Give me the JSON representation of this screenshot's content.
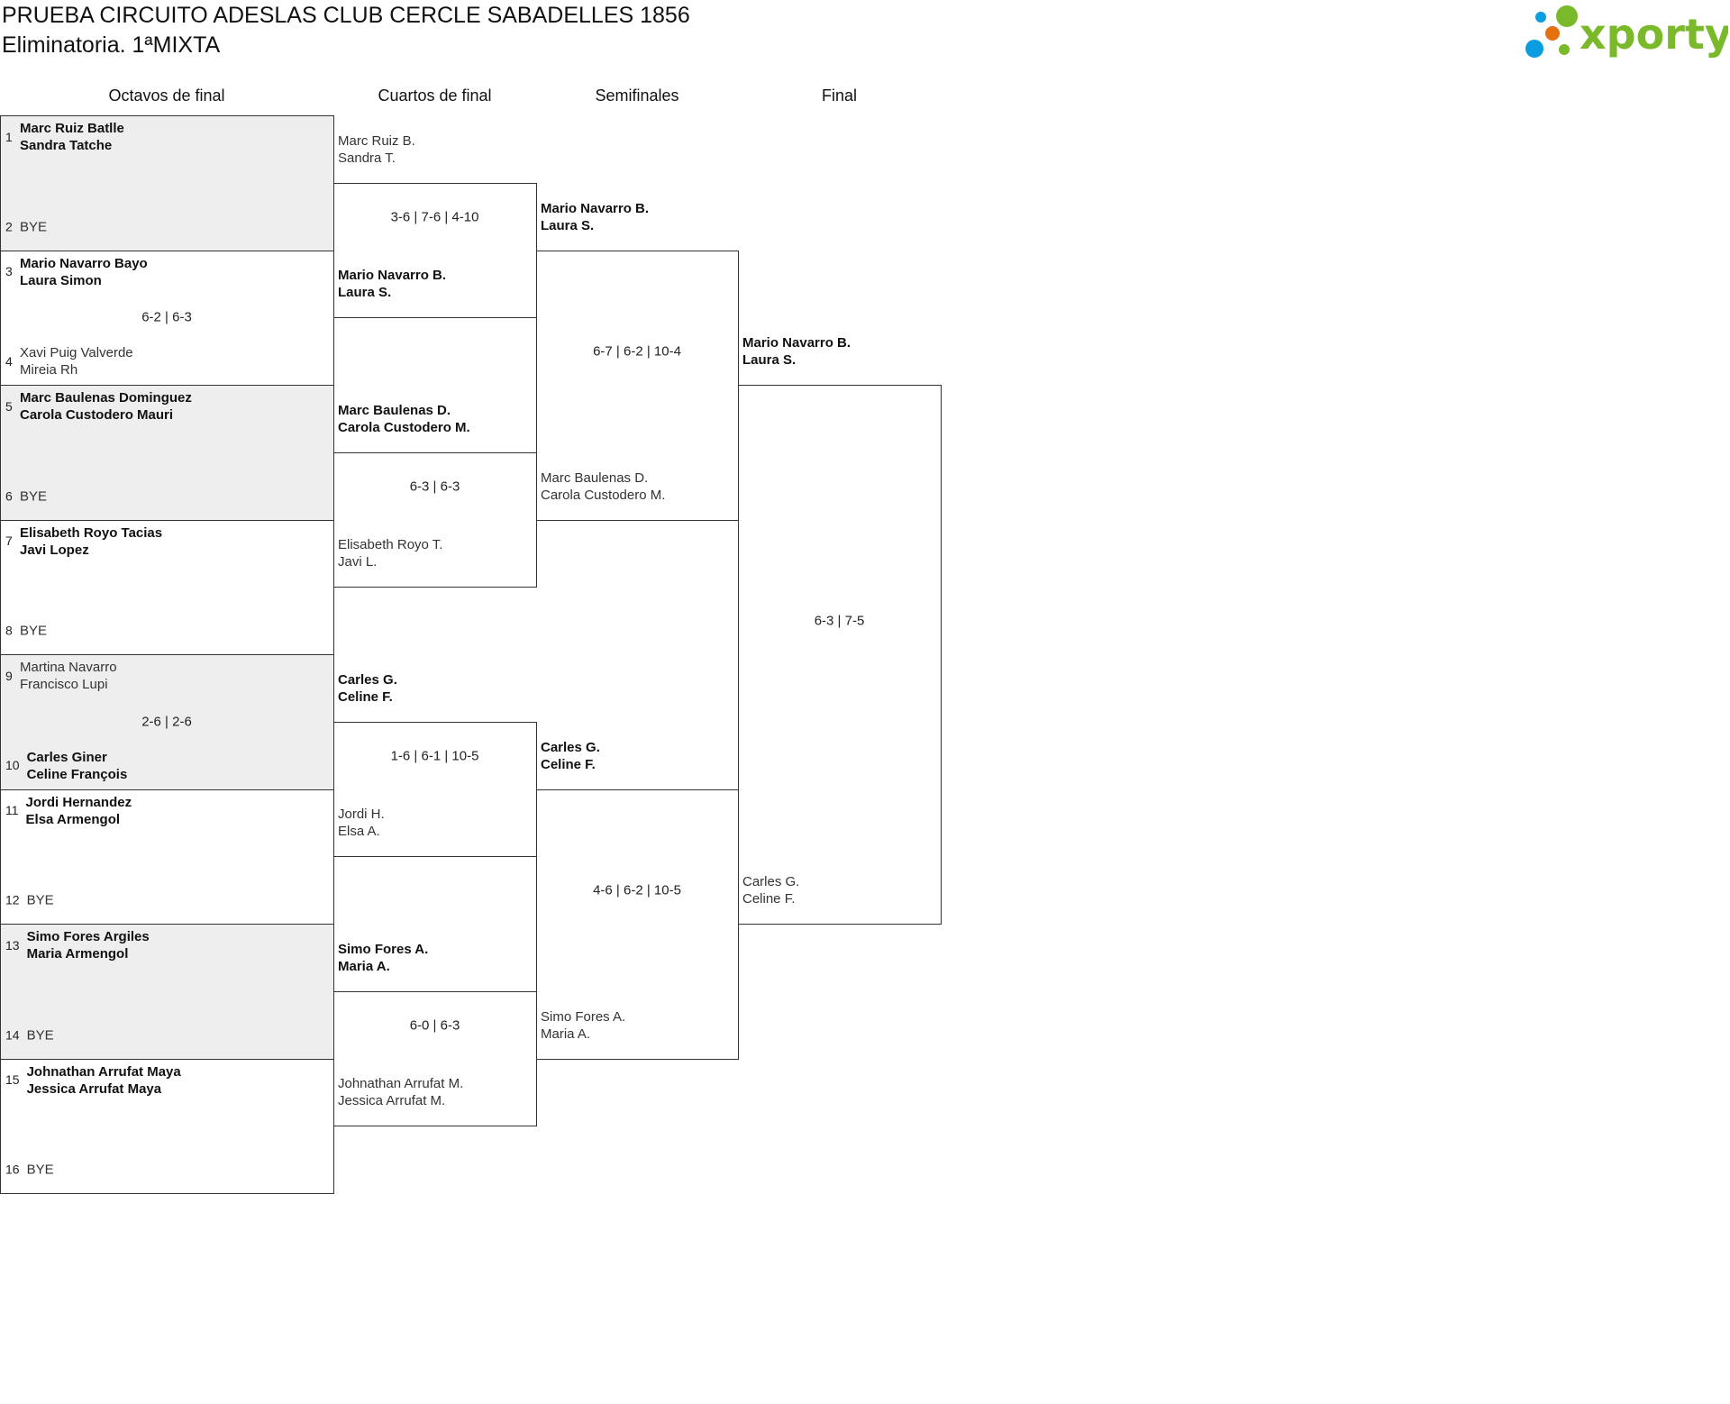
{
  "header": {
    "title": "PRUEBA CIRCUITO ADESLAS CLUB CERCLE SABADELLES 1856",
    "subtitle": "Eliminatoria. 1ªMIXTA"
  },
  "logo": {
    "text": "xporty",
    "colors": {
      "green": "#7ab929",
      "blue": "#0a9ee0",
      "orange": "#e5700f"
    }
  },
  "colors": {
    "border": "#333333",
    "shaded_row": "#eeeeee"
  },
  "rounds": [
    {
      "title": "Octavos de final",
      "matches": [
        {
          "top": {
            "seed": "1",
            "names": [
              "Marc Ruiz Batlle",
              "Sandra Tatche"
            ],
            "winner": true
          },
          "bottom": {
            "seed": "2",
            "names": [
              "BYE"
            ],
            "winner": false
          },
          "score": ""
        },
        {
          "top": {
            "seed": "3",
            "names": [
              "Mario Navarro Bayo",
              "Laura Simon"
            ],
            "winner": true
          },
          "bottom": {
            "seed": "4",
            "names": [
              "Xavi Puig Valverde",
              "Mireia Rh"
            ],
            "winner": false
          },
          "score": "6-2 | 6-3"
        },
        {
          "top": {
            "seed": "5",
            "names": [
              "Marc Baulenas Dominguez",
              "Carola Custodero Mauri"
            ],
            "winner": true
          },
          "bottom": {
            "seed": "6",
            "names": [
              "BYE"
            ],
            "winner": false
          },
          "score": ""
        },
        {
          "top": {
            "seed": "7",
            "names": [
              "Elisabeth Royo Tacias",
              "Javi Lopez"
            ],
            "winner": true
          },
          "bottom": {
            "seed": "8",
            "names": [
              "BYE"
            ],
            "winner": false
          },
          "score": ""
        },
        {
          "top": {
            "seed": "9",
            "names": [
              "Martina Navarro",
              "Francisco Lupi"
            ],
            "winner": false
          },
          "bottom": {
            "seed": "10",
            "names": [
              "Carles Giner",
              "Celine François"
            ],
            "winner": true
          },
          "score": "2-6 | 2-6"
        },
        {
          "top": {
            "seed": "11",
            "names": [
              "Jordi Hernandez",
              "Elsa Armengol"
            ],
            "winner": true
          },
          "bottom": {
            "seed": "12",
            "names": [
              "BYE"
            ],
            "winner": false
          },
          "score": ""
        },
        {
          "top": {
            "seed": "13",
            "names": [
              "Simo Fores Argiles",
              "Maria Armengol"
            ],
            "winner": true
          },
          "bottom": {
            "seed": "14",
            "names": [
              "BYE"
            ],
            "winner": false
          },
          "score": ""
        },
        {
          "top": {
            "seed": "15",
            "names": [
              "Johnathan Arrufat Maya",
              "Jessica Arrufat Maya"
            ],
            "winner": true
          },
          "bottom": {
            "seed": "16",
            "names": [
              "BYE"
            ],
            "winner": false
          },
          "score": ""
        }
      ]
    },
    {
      "title": "Cuartos de final",
      "matches": [
        {
          "top": {
            "names": [
              "Marc Ruiz B.",
              "Sandra T."
            ],
            "winner": false
          },
          "bottom": {
            "names": [
              "Mario Navarro B.",
              "Laura S."
            ],
            "winner": true
          },
          "score": "3-6 | 7-6 | 4-10"
        },
        {
          "top": {
            "names": [
              "Marc Baulenas D.",
              "Carola Custodero M."
            ],
            "winner": true
          },
          "bottom": {
            "names": [
              "Elisabeth Royo T.",
              "Javi L."
            ],
            "winner": false
          },
          "score": "6-3 | 6-3"
        },
        {
          "top": {
            "names": [
              "Carles G.",
              "Celine F."
            ],
            "winner": true
          },
          "bottom": {
            "names": [
              "Jordi H.",
              "Elsa A."
            ],
            "winner": false
          },
          "score": "1-6 | 6-1 | 10-5"
        },
        {
          "top": {
            "names": [
              "Simo Fores A.",
              "Maria A."
            ],
            "winner": true
          },
          "bottom": {
            "names": [
              "Johnathan Arrufat M.",
              "Jessica Arrufat M."
            ],
            "winner": false
          },
          "score": "6-0 | 6-3"
        }
      ]
    },
    {
      "title": "Semifinales",
      "matches": [
        {
          "top": {
            "names": [
              "Mario Navarro B.",
              "Laura S."
            ],
            "winner": true
          },
          "bottom": {
            "names": [
              "Marc Baulenas D.",
              "Carola Custodero M."
            ],
            "winner": false
          },
          "score": "6-7 | 6-2 | 10-4"
        },
        {
          "top": {
            "names": [
              "Carles G.",
              "Celine F."
            ],
            "winner": true
          },
          "bottom": {
            "names": [
              "Simo Fores A.",
              "Maria A."
            ],
            "winner": false
          },
          "score": "4-6 | 6-2 | 10-5"
        }
      ]
    },
    {
      "title": "Final",
      "matches": [
        {
          "top": {
            "names": [
              "Mario Navarro B.",
              "Laura S."
            ],
            "winner": true
          },
          "bottom": {
            "names": [
              "Carles G.",
              "Celine F."
            ],
            "winner": false
          },
          "score": "6-3 | 7-5"
        }
      ]
    }
  ]
}
